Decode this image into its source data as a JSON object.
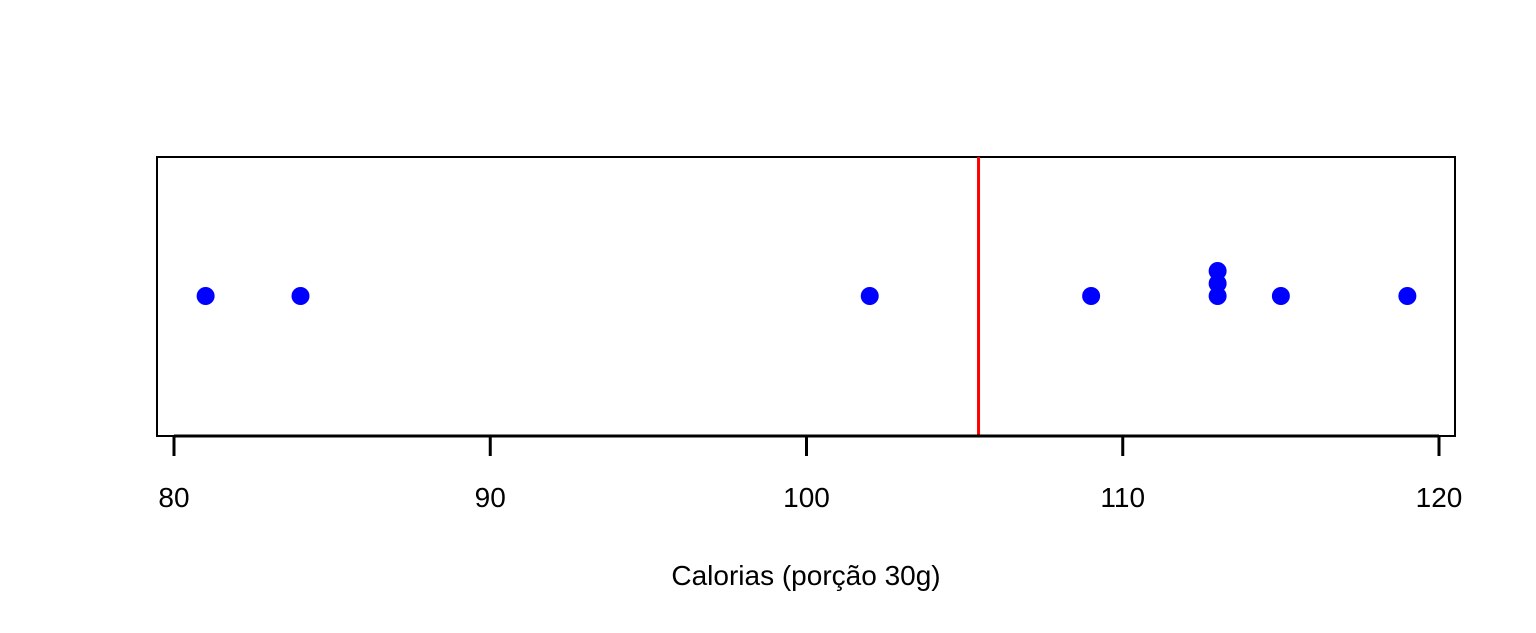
{
  "chart_data": {
    "type": "scatter",
    "subtype": "stacked-dotplot",
    "title": "",
    "xlabel": "Calorias (porção 30g)",
    "ylabel": "",
    "xlim": [
      80,
      120
    ],
    "x_ticks": [
      80,
      90,
      100,
      110,
      120
    ],
    "x_tick_labels": [
      "80",
      "90",
      "100",
      "110",
      "120"
    ],
    "points": [
      81,
      84,
      102,
      109,
      113,
      113,
      113,
      115,
      119
    ],
    "reference_line": {
      "x": 105.44,
      "color": "#ff0000"
    },
    "point_color": "#0000ff",
    "grid": false,
    "legend": "none"
  }
}
